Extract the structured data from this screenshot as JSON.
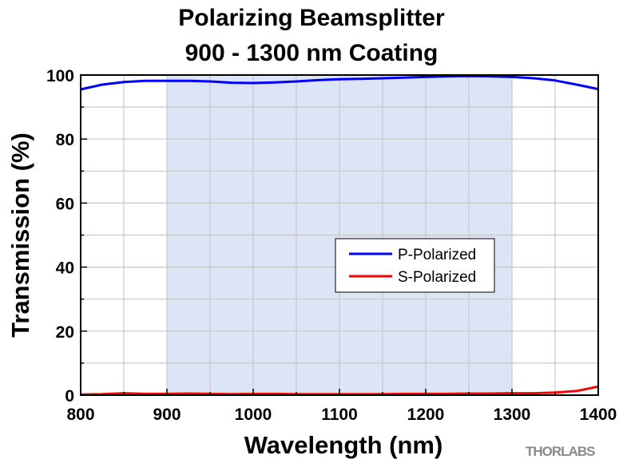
{
  "chart_data": {
    "type": "line",
    "title": [
      "Polarizing Beamsplitter",
      "900 - 1300 nm Coating"
    ],
    "xlabel": "Wavelength (nm)",
    "ylabel": "Transmission (%)",
    "xlim": [
      800,
      1400
    ],
    "ylim": [
      0,
      100
    ],
    "xticks": [
      800,
      900,
      1000,
      1100,
      1200,
      1300,
      1400
    ],
    "yticks": [
      0,
      20,
      40,
      60,
      80,
      100
    ],
    "grid": true,
    "legend_position": "center-right",
    "highlight_band": [
      900,
      1300
    ],
    "series": [
      {
        "name": "P-Polarized",
        "color": "#0000ff",
        "x": [
          800,
          825,
          850,
          875,
          900,
          925,
          950,
          975,
          1000,
          1025,
          1050,
          1075,
          1100,
          1125,
          1150,
          1175,
          1200,
          1225,
          1250,
          1275,
          1300,
          1325,
          1350,
          1375,
          1400
        ],
        "y": [
          95.5,
          97.0,
          97.8,
          98.2,
          98.2,
          98.2,
          98.0,
          97.6,
          97.5,
          97.7,
          98.0,
          98.4,
          98.7,
          98.8,
          99.0,
          99.2,
          99.4,
          99.6,
          99.7,
          99.6,
          99.4,
          99.0,
          98.3,
          97.0,
          95.6
        ]
      },
      {
        "name": "S-Polarized",
        "color": "#ff0000",
        "x": [
          800,
          825,
          850,
          875,
          900,
          925,
          950,
          975,
          1000,
          1025,
          1050,
          1075,
          1100,
          1125,
          1150,
          1175,
          1200,
          1225,
          1250,
          1275,
          1300,
          1325,
          1350,
          1375,
          1400
        ],
        "y": [
          0.2,
          0.3,
          0.6,
          0.4,
          0.4,
          0.5,
          0.4,
          0.3,
          0.4,
          0.4,
          0.3,
          0.3,
          0.3,
          0.3,
          0.3,
          0.4,
          0.4,
          0.4,
          0.5,
          0.5,
          0.6,
          0.6,
          0.8,
          1.3,
          2.7
        ]
      }
    ]
  },
  "brand": "THORLABS",
  "colors": {
    "band_fill": "#dce5f6",
    "grid": "#c8c8c8",
    "axis": "#000000"
  }
}
